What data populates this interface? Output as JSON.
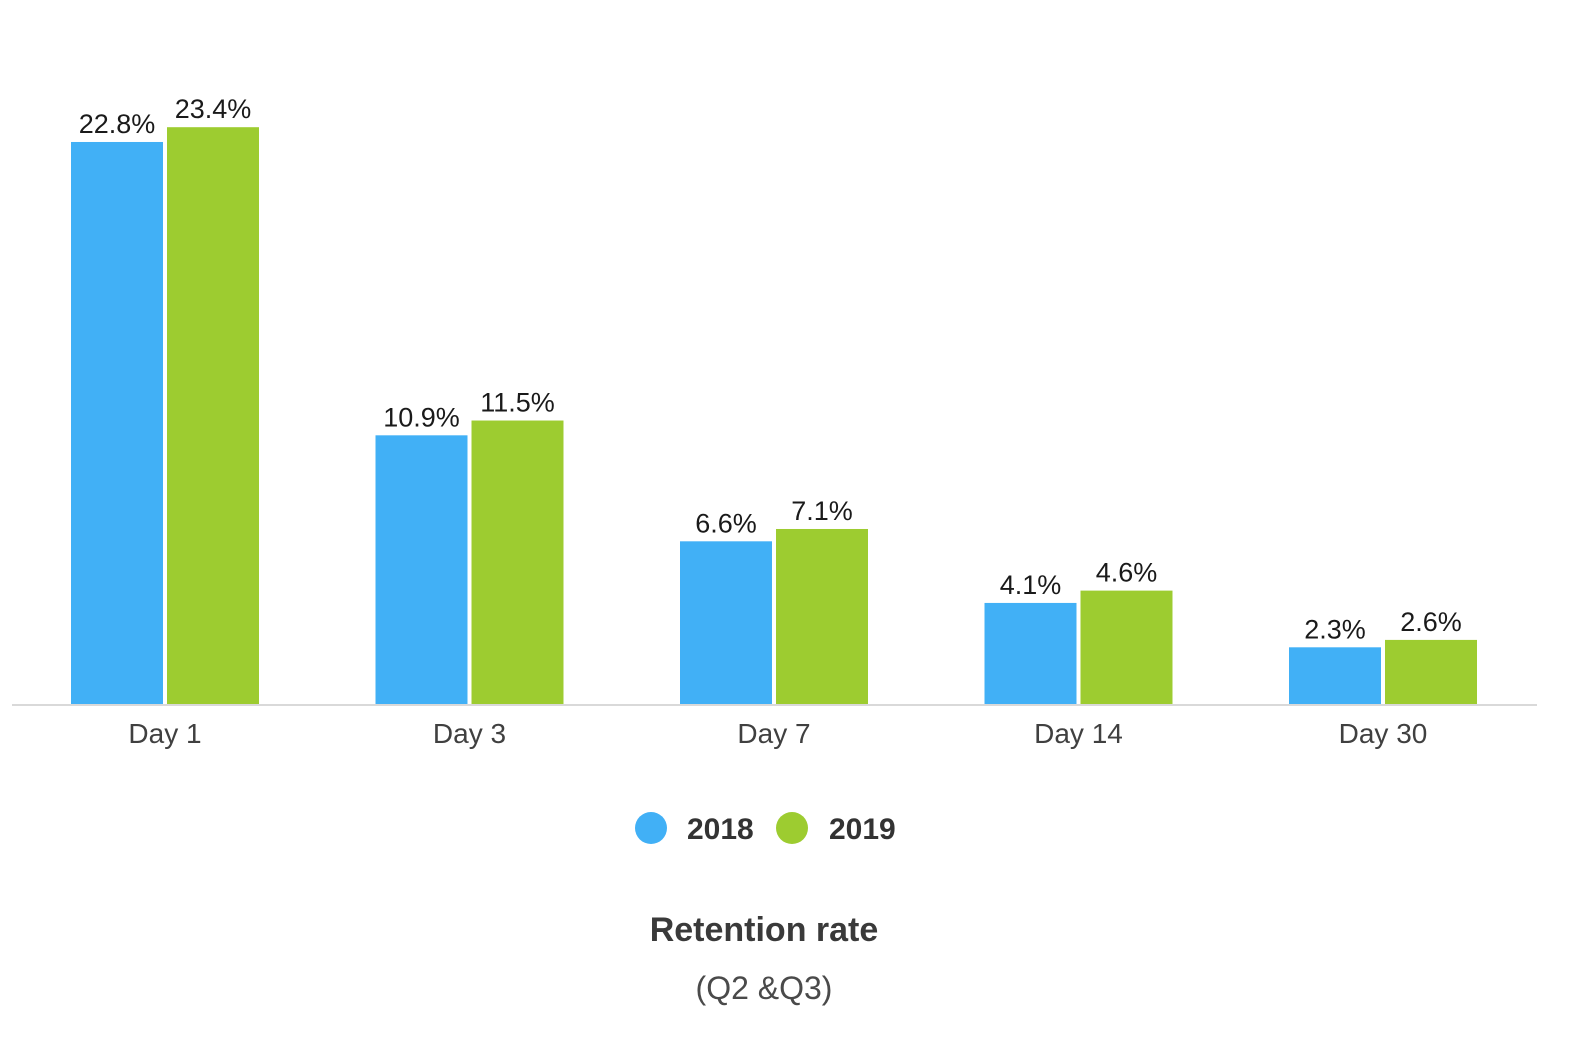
{
  "chart_data": {
    "type": "bar",
    "title": "Retention rate",
    "subtitle": "(Q2 &Q3)",
    "categories": [
      "Day 1",
      "Day 3",
      "Day 7",
      "Day 14",
      "Day 30"
    ],
    "series": [
      {
        "name": "2018",
        "color": "#41B0F6",
        "values": [
          22.8,
          10.9,
          6.6,
          4.1,
          2.3
        ],
        "labels": [
          "22.8%",
          "10.9%",
          "6.6%",
          "4.1%",
          "2.3%"
        ]
      },
      {
        "name": "2019",
        "color": "#9DCC30",
        "values": [
          23.4,
          11.5,
          7.1,
          4.6,
          2.6
        ],
        "labels": [
          "23.4%",
          "11.5%",
          "7.1%",
          "4.6%",
          "2.6%"
        ]
      }
    ],
    "ylim": [
      0,
      25
    ],
    "grid": false,
    "legend_position": "bottom-center"
  }
}
